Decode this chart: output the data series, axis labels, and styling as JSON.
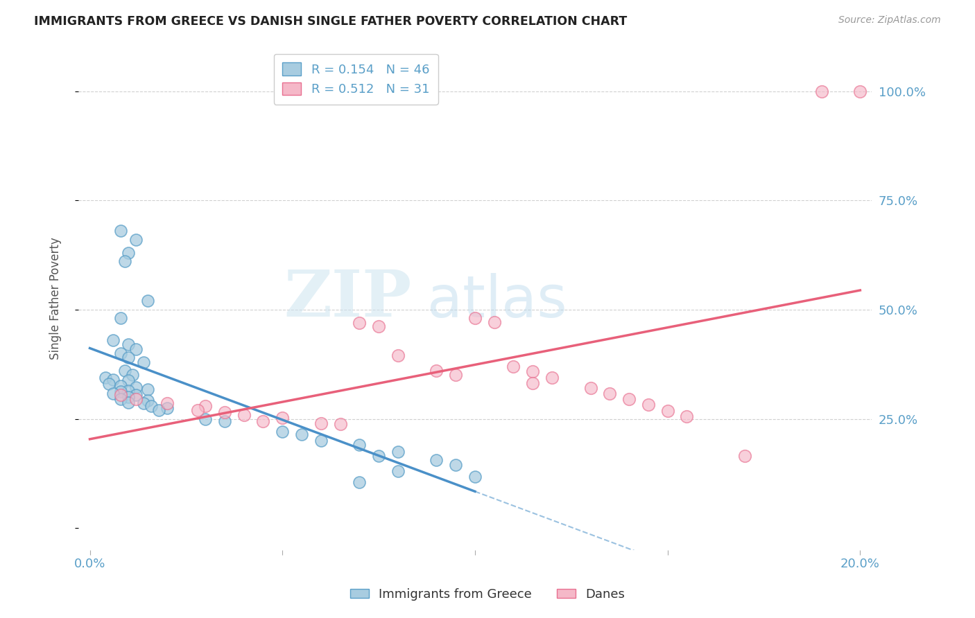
{
  "title": "IMMIGRANTS FROM GREECE VS DANISH SINGLE FATHER POVERTY CORRELATION CHART",
  "source": "Source: ZipAtlas.com",
  "ylabel": "Single Father Poverty",
  "legend_blue_r": "0.154",
  "legend_blue_n": "46",
  "legend_pink_r": "0.512",
  "legend_pink_n": "31",
  "legend_labels": [
    "Immigrants from Greece",
    "Danes"
  ],
  "blue_color": "#a8cce0",
  "blue_edge_color": "#5a9fc8",
  "blue_line_color": "#4a90c8",
  "pink_color": "#f5b8c8",
  "pink_edge_color": "#e87090",
  "pink_line_color": "#e8607a",
  "watermark_zip": "ZIP",
  "watermark_atlas": "atlas",
  "background_color": "#ffffff",
  "grid_color": "#d0d0d0",
  "axis_label_color": "#5a9fc8",
  "title_color": "#222222",
  "blue_scatter": [
    [
      0.0008,
      0.68
    ],
    [
      0.0012,
      0.66
    ],
    [
      0.001,
      0.63
    ],
    [
      0.0009,
      0.61
    ],
    [
      0.0015,
      0.52
    ],
    [
      0.0008,
      0.48
    ],
    [
      0.0006,
      0.43
    ],
    [
      0.001,
      0.42
    ],
    [
      0.0012,
      0.41
    ],
    [
      0.0008,
      0.4
    ],
    [
      0.001,
      0.39
    ],
    [
      0.0014,
      0.38
    ],
    [
      0.0009,
      0.36
    ],
    [
      0.0011,
      0.35
    ],
    [
      0.0004,
      0.345
    ],
    [
      0.0006,
      0.34
    ],
    [
      0.001,
      0.338
    ],
    [
      0.0005,
      0.33
    ],
    [
      0.0008,
      0.325
    ],
    [
      0.0012,
      0.322
    ],
    [
      0.0015,
      0.318
    ],
    [
      0.001,
      0.315
    ],
    [
      0.0008,
      0.312
    ],
    [
      0.0006,
      0.308
    ],
    [
      0.0012,
      0.305
    ],
    [
      0.001,
      0.3
    ],
    [
      0.0008,
      0.295
    ],
    [
      0.0015,
      0.292
    ],
    [
      0.001,
      0.288
    ],
    [
      0.0014,
      0.285
    ],
    [
      0.0016,
      0.28
    ],
    [
      0.002,
      0.275
    ],
    [
      0.0018,
      0.27
    ],
    [
      0.003,
      0.25
    ],
    [
      0.0035,
      0.245
    ],
    [
      0.005,
      0.22
    ],
    [
      0.0055,
      0.215
    ],
    [
      0.006,
      0.2
    ],
    [
      0.007,
      0.19
    ],
    [
      0.008,
      0.175
    ],
    [
      0.0075,
      0.165
    ],
    [
      0.009,
      0.155
    ],
    [
      0.0095,
      0.145
    ],
    [
      0.008,
      0.13
    ],
    [
      0.01,
      0.118
    ],
    [
      0.007,
      0.105
    ]
  ],
  "pink_scatter": [
    [
      0.0008,
      0.305
    ],
    [
      0.0012,
      0.295
    ],
    [
      0.002,
      0.285
    ],
    [
      0.003,
      0.28
    ],
    [
      0.0028,
      0.27
    ],
    [
      0.0035,
      0.265
    ],
    [
      0.004,
      0.258
    ],
    [
      0.005,
      0.252
    ],
    [
      0.0045,
      0.245
    ],
    [
      0.006,
      0.24
    ],
    [
      0.0065,
      0.238
    ],
    [
      0.007,
      0.47
    ],
    [
      0.0075,
      0.462
    ],
    [
      0.008,
      0.395
    ],
    [
      0.009,
      0.36
    ],
    [
      0.0095,
      0.35
    ],
    [
      0.01,
      0.48
    ],
    [
      0.0105,
      0.472
    ],
    [
      0.011,
      0.37
    ],
    [
      0.0115,
      0.358
    ],
    [
      0.012,
      0.345
    ],
    [
      0.0115,
      0.332
    ],
    [
      0.013,
      0.32
    ],
    [
      0.0135,
      0.308
    ],
    [
      0.014,
      0.295
    ],
    [
      0.0145,
      0.282
    ],
    [
      0.015,
      0.268
    ],
    [
      0.0155,
      0.255
    ],
    [
      0.017,
      0.165
    ],
    [
      0.019,
      1.0
    ],
    [
      0.02,
      1.0
    ]
  ],
  "xlim_data": 0.02,
  "xlim_display": 0.2,
  "ylim_min": -0.05,
  "ylim_max": 1.1,
  "yticks": [
    0.0,
    0.25,
    0.5,
    0.75,
    1.0
  ],
  "xtick_positions": [
    0.0,
    0.05,
    0.1,
    0.15,
    0.2
  ],
  "blue_line_x_solid_end": 0.01,
  "blue_line_display_end": 0.2
}
